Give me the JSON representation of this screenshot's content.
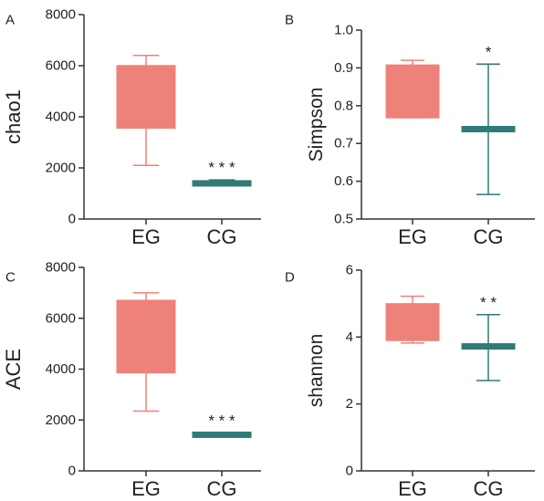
{
  "colors": {
    "eg": "#EE827A",
    "cg": "#2E7B77",
    "axis": "#333333",
    "text": "#222222"
  },
  "chart_data": [
    {
      "panel": "A",
      "type": "box",
      "ylabel": "chao1",
      "ylim": [
        0,
        8000
      ],
      "yticks": [
        0,
        2000,
        4000,
        6000,
        8000
      ],
      "categories": [
        "EG",
        "CG"
      ],
      "boxes": [
        {
          "category": "EG",
          "min": 2100,
          "q1": 3550,
          "median": 6000,
          "q3": 6000,
          "max": 6400
        },
        {
          "category": "CG",
          "min": 1330,
          "q1": 1330,
          "median": 1400,
          "q3": 1460,
          "max": 1530,
          "significance": "* * *"
        }
      ]
    },
    {
      "panel": "B",
      "type": "box",
      "ylabel": "Simpson",
      "ylim": [
        0.5,
        1.0
      ],
      "yticks": [
        0.5,
        0.6,
        0.7,
        0.8,
        0.9,
        1.0
      ],
      "tick_decimals": 1,
      "categories": [
        "EG",
        "CG"
      ],
      "boxes": [
        {
          "category": "EG",
          "min": 0.768,
          "q1": 0.768,
          "median": 0.768,
          "q3": 0.908,
          "max": 0.92
        },
        {
          "category": "CG",
          "min": 0.565,
          "q1": 0.733,
          "median": 0.738,
          "q3": 0.743,
          "max": 0.91,
          "significance": "*"
        }
      ]
    },
    {
      "panel": "C",
      "type": "box",
      "ylabel": "ACE",
      "ylim": [
        0,
        8000
      ],
      "yticks": [
        0,
        2000,
        4000,
        6000,
        8000
      ],
      "categories": [
        "EG",
        "CG"
      ],
      "boxes": [
        {
          "category": "EG",
          "min": 2350,
          "q1": 3850,
          "median": 6700,
          "q3": 6700,
          "max": 7000
        },
        {
          "category": "CG",
          "min": 1360,
          "q1": 1360,
          "median": 1420,
          "q3": 1480,
          "max": 1480,
          "significance": "* * *"
        }
      ]
    },
    {
      "panel": "D",
      "type": "box",
      "ylabel": "shannon",
      "ylim": [
        0,
        6
      ],
      "yticks": [
        0,
        2,
        4,
        6
      ],
      "categories": [
        "EG",
        "CG"
      ],
      "boxes": [
        {
          "category": "EG",
          "min": 3.82,
          "q1": 3.9,
          "median": 3.9,
          "q3": 5.0,
          "max": 5.22
        },
        {
          "category": "CG",
          "min": 2.7,
          "q1": 3.66,
          "median": 3.72,
          "q3": 3.78,
          "max": 4.67,
          "significance": "* *"
        }
      ]
    }
  ]
}
